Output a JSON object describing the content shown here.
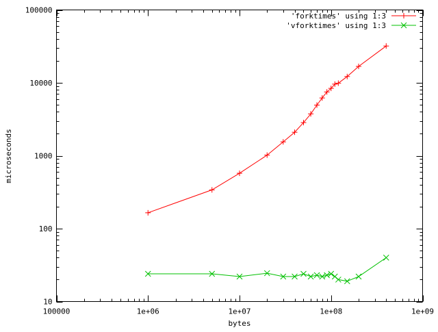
{
  "chart_data": {
    "type": "line",
    "title": "",
    "xlabel": "bytes",
    "ylabel": "microseconds",
    "xscale": "log",
    "yscale": "log",
    "xlim": [
      100000,
      1000000000
    ],
    "ylim": [
      10,
      100000
    ],
    "grid": false,
    "legend_position": "top-right",
    "x_tick_labels": [
      "100000",
      "1e+06",
      "1e+07",
      "1e+08",
      "1e+09"
    ],
    "y_tick_labels": [
      "10",
      "100",
      "1000",
      "10000",
      "100000"
    ],
    "series": [
      {
        "name": "'forktimes' using 1:3",
        "color": "#ff0000",
        "marker": "plus",
        "x": [
          1000000,
          5000000,
          10000000,
          20000000,
          30000000,
          40000000,
          50000000,
          60000000,
          70000000,
          80000000,
          90000000,
          100000000,
          110000000,
          120000000,
          150000000,
          200000000,
          400000000
        ],
        "y": [
          165,
          340,
          575,
          1020,
          1550,
          2100,
          2850,
          3750,
          4950,
          6200,
          7500,
          8400,
          9600,
          9900,
          12200,
          16800,
          32000
        ]
      },
      {
        "name": "'vforktimes' using 1:3",
        "color": "#00c000",
        "marker": "cross",
        "x": [
          1000000,
          5000000,
          10000000,
          20000000,
          30000000,
          40000000,
          50000000,
          60000000,
          70000000,
          80000000,
          90000000,
          100000000,
          110000000,
          120000000,
          150000000,
          200000000,
          400000000
        ],
        "y": [
          24,
          24,
          22,
          24.5,
          22,
          22,
          24,
          22,
          23,
          22,
          23,
          24,
          22,
          20,
          19,
          22,
          40
        ]
      }
    ]
  }
}
